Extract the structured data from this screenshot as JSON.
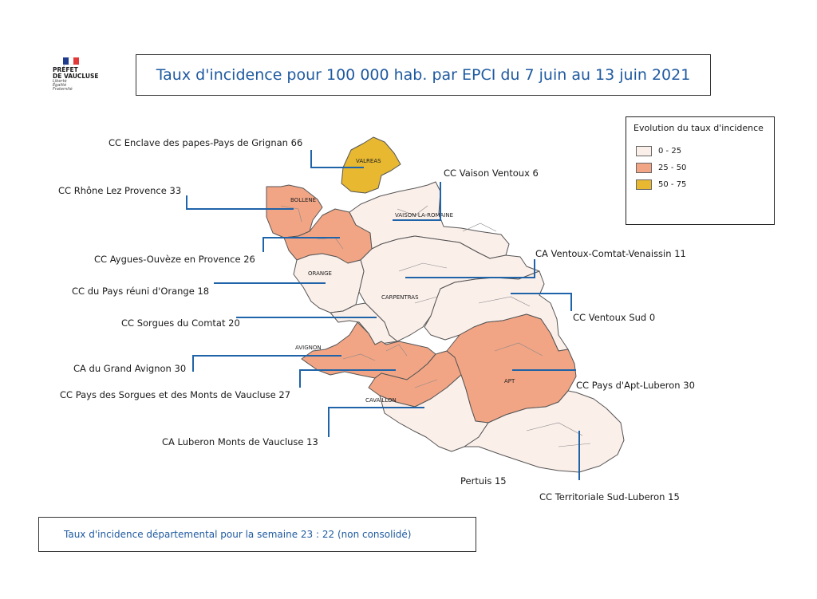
{
  "logo": {
    "line1": "PRÉFET",
    "line2": "DE VAUCLUSE",
    "motto1": "Liberté",
    "motto2": "Égalité",
    "motto3": "Fraternité"
  },
  "title": "Taux d'incidence pour 100 000 hab. par EPCI du 7 juin au 13 juin 2021",
  "legend": {
    "title": "Evolution du taux d'incidence",
    "classes": [
      {
        "label": "0 - 25",
        "color": "#fbefea"
      },
      {
        "label": "25 - 50",
        "color": "#f2a585"
      },
      {
        "label": "50 - 75",
        "color": "#e7b830"
      }
    ]
  },
  "map_labels": {
    "valreas": "VALREAS",
    "bollene": "BOLLENE",
    "vaison": "VAISON-LA-ROMAINE",
    "orange": "ORANGE",
    "carpentras": "CARPENTRAS",
    "avignon": "AVIGNON",
    "apt": "APT",
    "cavaillon": "CAVAILLON"
  },
  "epci": [
    {
      "name": "CC Enclave des papes-Pays de Grignan",
      "rate": "66"
    },
    {
      "name": "CC Rhône Lez Provence",
      "rate": "33"
    },
    {
      "name": "CC Vaison Ventoux",
      "rate": "6"
    },
    {
      "name": "CC Aygues-Ouvèze en Provence",
      "rate": "26"
    },
    {
      "name": "CA Ventoux-Comtat-Venaissin",
      "rate": "11"
    },
    {
      "name": "CC du Pays réuni d'Orange",
      "rate": "18"
    },
    {
      "name": "CC Ventoux Sud",
      "rate": "0"
    },
    {
      "name": "CC Sorgues du Comtat",
      "rate": "20"
    },
    {
      "name": "CA du Grand Avignon",
      "rate": "30"
    },
    {
      "name": "CC Pays d'Apt-Luberon",
      "rate": "30"
    },
    {
      "name": "CC Pays des Sorgues et des Monts de Vaucluse",
      "rate": "27"
    },
    {
      "name": "CA Luberon Monts de Vaucluse",
      "rate": "13"
    },
    {
      "name": "Pertuis",
      "rate": "15"
    },
    {
      "name": "CC Territoriale Sud-Luberon",
      "rate": "15"
    }
  ],
  "footer": "Taux d'incidence départemental pour la semaine 23  :  22  (non consolidé)"
}
